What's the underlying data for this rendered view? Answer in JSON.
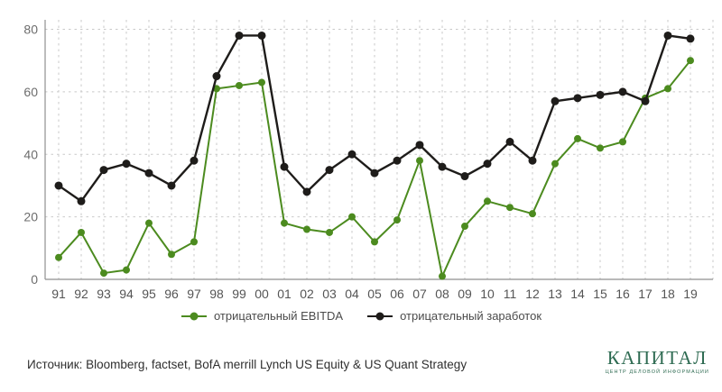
{
  "chart_data": {
    "type": "line",
    "x": [
      "91",
      "92",
      "93",
      "94",
      "95",
      "96",
      "97",
      "98",
      "99",
      "00",
      "01",
      "02",
      "03",
      "04",
      "05",
      "06",
      "07",
      "08",
      "09",
      "10",
      "11",
      "12",
      "13",
      "14",
      "15",
      "16",
      "17",
      "18",
      "19"
    ],
    "series": [
      {
        "name": "отрицательный EBITDA",
        "color": "#4c8b1f",
        "values": [
          7,
          15,
          2,
          3,
          18,
          8,
          12,
          61,
          62,
          63,
          18,
          16,
          15,
          20,
          12,
          19,
          38,
          1,
          17,
          25,
          23,
          21,
          37,
          45,
          42,
          44,
          58,
          61,
          70
        ]
      },
      {
        "name": "отрицательный заработок",
        "color": "#1e1c1a",
        "values": [
          30,
          25,
          35,
          37,
          34,
          30,
          38,
          65,
          78,
          78,
          36,
          28,
          35,
          40,
          34,
          38,
          43,
          36,
          33,
          37,
          44,
          38,
          57,
          58,
          59,
          60,
          57,
          78,
          77
        ]
      }
    ],
    "ylim": [
      0,
      80
    ],
    "yticks": [
      0,
      20,
      40,
      60,
      80
    ],
    "grid": true,
    "legend_position": "bottom",
    "style": {
      "grid_color": "#c9c9c9",
      "axis_color": "#8f8f8f",
      "tick_label_color": "#6d6d6d",
      "x_label_color": "#555555"
    }
  },
  "footer": {
    "source": "Источник: Bloomberg, factset, BofA merrill Lynch US Equity & US Quant Strategy",
    "logo_title": "КАПИТАЛ",
    "logo_tagline": "ЦЕНТР ДЕЛОВОЙ ИНФОРМАЦИИ",
    "logo_color": "#2e6b52"
  }
}
